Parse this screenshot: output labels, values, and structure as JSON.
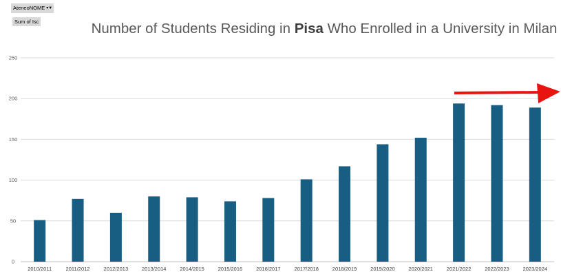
{
  "pivot": {
    "filter_label": "AteneoNOME",
    "filter_icon": "filter-icon",
    "value_label": "Sum of Isc"
  },
  "chart_data": {
    "type": "bar",
    "title_prefix": "Number of Students Residing in ",
    "title_highlight": "Pisa",
    "title_suffix": " Who Enrolled in a University in Milan",
    "categories": [
      "2010/2011",
      "2011/2012",
      "2012/2013",
      "2013/2014",
      "2014/2015",
      "2015/2016",
      "2016/2017",
      "2017/2018",
      "2018/2019",
      "2019/2020",
      "2020/2021",
      "2021/2022",
      "2022/2023",
      "2023/2024"
    ],
    "values": [
      51,
      77,
      60,
      80,
      79,
      74,
      78,
      101,
      117,
      144,
      152,
      194,
      192,
      189
    ],
    "ylim": [
      0,
      250
    ],
    "yticks": [
      0,
      50,
      100,
      150,
      200,
      250
    ],
    "grid": true,
    "legend": "none",
    "bar_color": "#185d82",
    "annotation_color": "#e8140f"
  }
}
